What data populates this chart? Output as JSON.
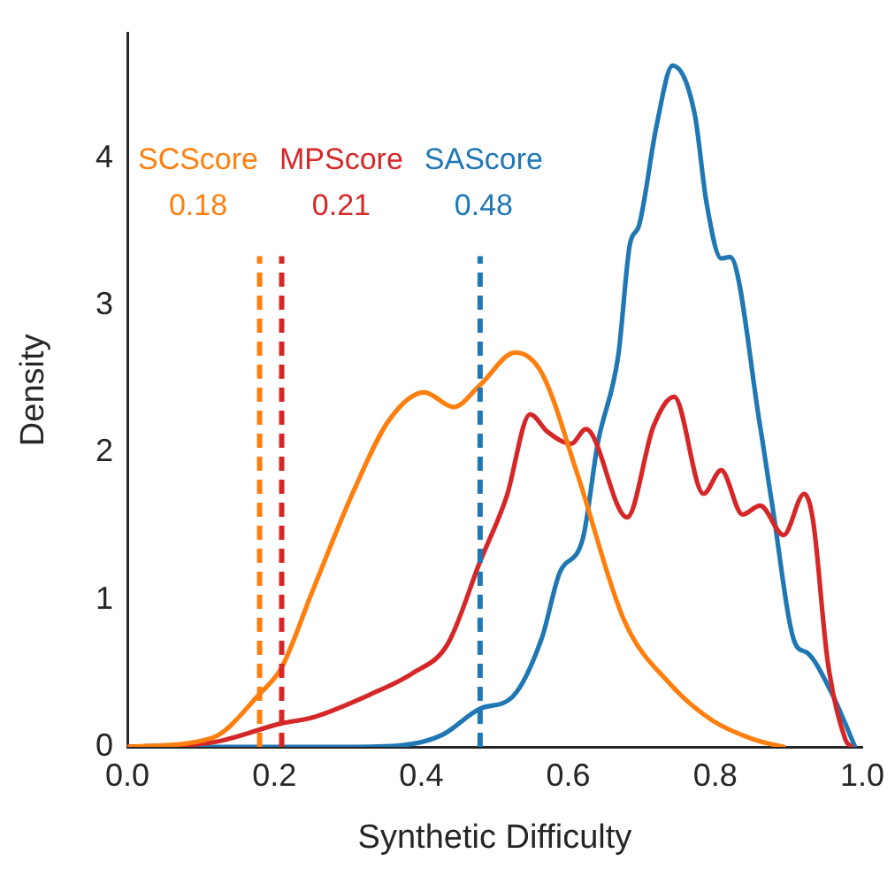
{
  "chart_data": {
    "type": "line",
    "xlabel": "Synthetic Difficulty",
    "ylabel": "Density",
    "xlim": [
      0,
      1
    ],
    "ylim": [
      0,
      4.85
    ],
    "xticks": [
      {
        "value": 0,
        "label": "0.0"
      },
      {
        "value": 0.2,
        "label": "0.2"
      },
      {
        "value": 0.4,
        "label": "0.4"
      },
      {
        "value": 0.6,
        "label": "0.6"
      },
      {
        "value": 0.8,
        "label": "0.8"
      },
      {
        "value": 1,
        "label": "1.0"
      }
    ],
    "yticks": [
      0,
      1,
      2,
      3,
      4
    ],
    "grid": false,
    "legend": false,
    "marker": "none",
    "line_style": "solid",
    "series": [
      {
        "color": "#ff7f0e",
        "x": [
          0,
          0.115,
          0.18,
          0.21,
          0.252,
          0.308,
          0.356,
          0.404,
          0.444,
          0.48,
          0.528,
          0.564,
          0.612,
          0.676,
          0.74,
          0.796,
          0.853,
          0.893
        ],
        "values": [
          0,
          0.06,
          0.36,
          0.54,
          1.06,
          1.74,
          2.22,
          2.41,
          2.31,
          2.46,
          2.68,
          2.54,
          1.86,
          0.86,
          0.42,
          0.18,
          0.05,
          0
        ]
      },
      {
        "color": "#d62728",
        "x": [
          0,
          0.115,
          0.21,
          0.252,
          0.332,
          0.388,
          0.436,
          0.48,
          0.516,
          0.548,
          0.572,
          0.604,
          0.624,
          0.68,
          0.716,
          0.744,
          0.784,
          0.808,
          0.837,
          0.861,
          0.893,
          0.921,
          0.933,
          0.953,
          0.977,
          0.985
        ],
        "values": [
          0,
          0.03,
          0.16,
          0.2,
          0.36,
          0.5,
          0.7,
          1.26,
          1.7,
          2.26,
          2.14,
          2.06,
          2.16,
          1.56,
          2.18,
          2.38,
          1.72,
          1.88,
          1.58,
          1.64,
          1.44,
          1.72,
          1.54,
          0.58,
          0.05,
          0
        ]
      },
      {
        "color": "#1f77b4",
        "x": [
          0,
          0.3,
          0.372,
          0.428,
          0.48,
          0.524,
          0.564,
          0.588,
          0.62,
          0.64,
          0.668,
          0.684,
          0.696,
          0.72,
          0.742,
          0.772,
          0.788,
          0.808,
          0.82,
          0.861,
          0.877,
          0.909,
          0.925,
          0.957,
          0.981,
          0.99
        ],
        "values": [
          0,
          0,
          0.01,
          0.08,
          0.26,
          0.34,
          0.74,
          1.18,
          1.42,
          2.06,
          2.66,
          3.42,
          3.54,
          4.22,
          4.63,
          4.3,
          3.7,
          3.32,
          3.33,
          2.18,
          1.66,
          0.7,
          0.64,
          0.38,
          0.11,
          0
        ]
      }
    ],
    "ref_lines": [
      {
        "axis": "x",
        "value": 0.18,
        "label": "SCScore\n0.18",
        "color": "#ff7f0e",
        "line_style": "dashed"
      },
      {
        "axis": "x",
        "value": 0.21,
        "label": "MPScore\n0.21",
        "color": "#d62728",
        "line_style": "dashed"
      },
      {
        "axis": "x",
        "value": 0.48,
        "label": "SAScore\n0.48",
        "color": "#1f77b4",
        "line_style": "dashed"
      }
    ]
  }
}
